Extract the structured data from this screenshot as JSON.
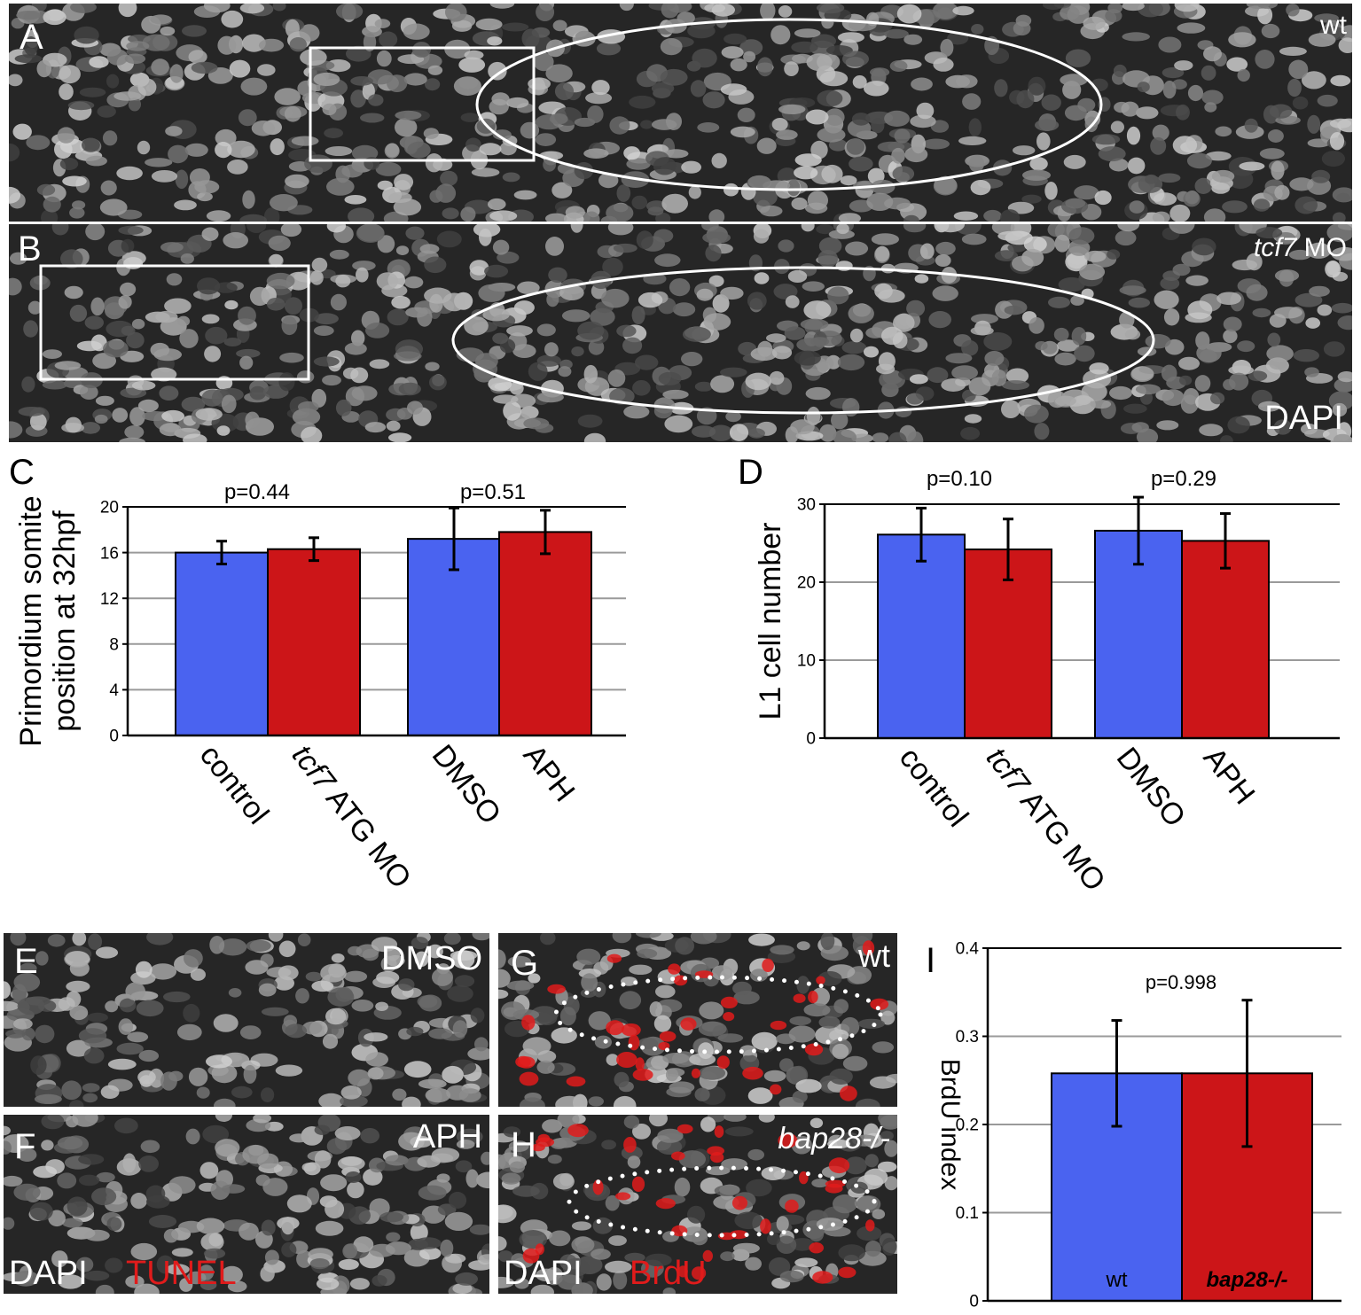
{
  "panels": {
    "A": {
      "letter": "A",
      "condition": "wt"
    },
    "B": {
      "letter": "B",
      "condition_italic": "tcf7",
      "condition_rest": " MO",
      "stain": "DAPI"
    },
    "E": {
      "letter": "E",
      "condition": "DMSO"
    },
    "F": {
      "letter": "F",
      "condition": "APH",
      "stain1": "DAPI",
      "stain2": "TUNEL"
    },
    "G": {
      "letter": "G",
      "condition": "wt"
    },
    "H": {
      "letter": "H",
      "condition": "bap28-/-",
      "stain1": "DAPI",
      "stain2": "BrdU"
    },
    "C": {
      "letter": "C"
    },
    "D": {
      "letter": "D"
    },
    "I": {
      "letter": "I"
    }
  },
  "colors": {
    "blue": "#4a63f0",
    "red": "#cc1518",
    "overlay": "#ffffff",
    "tunel": "#e01b1b",
    "brdu": "#e01b1b"
  },
  "chart_data": [
    {
      "id": "C",
      "type": "bar",
      "ylabel": "Primordium somite position at 32hpf",
      "ylim": [
        0,
        20
      ],
      "yticks": [
        0,
        4,
        8,
        12,
        16,
        20
      ],
      "grid": true,
      "categories": [
        "control",
        "tcf7 ATG MO",
        "DMSO",
        "APH"
      ],
      "values": [
        16.0,
        16.3,
        17.2,
        17.8
      ],
      "errors": [
        1.0,
        1.0,
        2.7,
        1.9
      ],
      "bar_colors": [
        "blue",
        "red",
        "blue",
        "red"
      ],
      "pvalues": [
        "p=0.44",
        "p=0.51"
      ]
    },
    {
      "id": "D",
      "type": "bar",
      "ylabel": "L1 cell number",
      "ylim": [
        0,
        30
      ],
      "yticks": [
        0,
        10,
        20,
        30
      ],
      "grid": true,
      "categories": [
        "control",
        "tcf7 ATG MO",
        "DMSO",
        "APH"
      ],
      "values": [
        26.1,
        24.2,
        26.6,
        25.3
      ],
      "errors": [
        3.4,
        3.9,
        4.3,
        3.5
      ],
      "bar_colors": [
        "blue",
        "red",
        "blue",
        "red"
      ],
      "pvalues": [
        "p=0.10",
        "p=0.29"
      ]
    },
    {
      "id": "I",
      "type": "bar",
      "ylabel": "BrdU index",
      "ylim": [
        0,
        0.4
      ],
      "yticks": [
        "0",
        "0.1",
        "0.2",
        "0.3",
        "0.4"
      ],
      "grid": true,
      "categories": [
        "wt",
        "bap28-/-"
      ],
      "values": [
        0.258,
        0.258
      ],
      "errors": [
        0.06,
        0.083
      ],
      "bar_colors": [
        "blue",
        "red"
      ],
      "pvalues": [
        "p=0.998"
      ]
    }
  ]
}
